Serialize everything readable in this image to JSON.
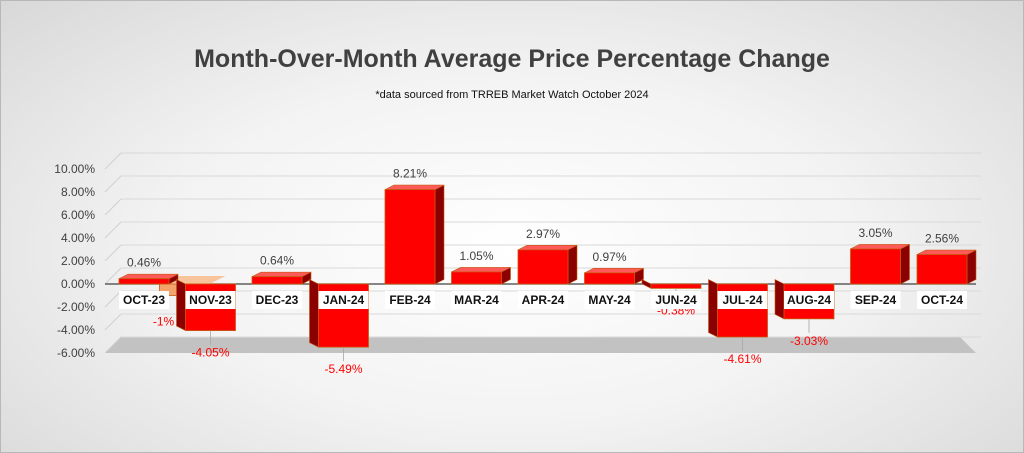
{
  "chart_data": {
    "type": "bar",
    "title": "Month-Over-Month Average Price Percentage Change",
    "subtitle": "*data sourced from TRREB Market Watch October 2024",
    "categories": [
      "OCT-23",
      "NOV-23",
      "DEC-23",
      "JAN-24",
      "FEB-24",
      "MAR-24",
      "APR-24",
      "MAY-24",
      "JUN-24",
      "JUL-24",
      "AUG-24",
      "SEP-24",
      "OCT-24"
    ],
    "values": [
      0.46,
      -4.05,
      0.64,
      -5.49,
      8.21,
      1.05,
      2.97,
      0.97,
      -0.38,
      -4.61,
      -3.03,
      3.05,
      2.56
    ],
    "value_labels": [
      "0.46%",
      "-4.05%",
      "0.64%",
      "-5.49%",
      "8.21%",
      "1.05%",
      "2.97%",
      "0.97%",
      "-0.38%",
      "-4.61%",
      "-3.03%",
      "3.05%",
      "2.56%"
    ],
    "annotations": [
      {
        "category": "NOV-23",
        "value": -1,
        "label": "-1%"
      }
    ],
    "yticks": [
      "10.00%",
      "8.00%",
      "6.00%",
      "4.00%",
      "2.00%",
      "0.00%",
      "-2.00%",
      "-4.00%",
      "-6.00%"
    ],
    "ytick_values": [
      10,
      8,
      6,
      4,
      2,
      0,
      -2,
      -4,
      -6
    ],
    "ylim": [
      -6,
      10
    ],
    "xlabel": "",
    "ylabel": "",
    "legend": "none",
    "grid": true,
    "colors": {
      "bar": "#ff0000",
      "bar_dark": "#8b0000",
      "bar_edge": "#c55a11",
      "annotation_bar": "#f4a46a",
      "positive_label": "#404040",
      "negative_label": "#ff0000"
    }
  }
}
